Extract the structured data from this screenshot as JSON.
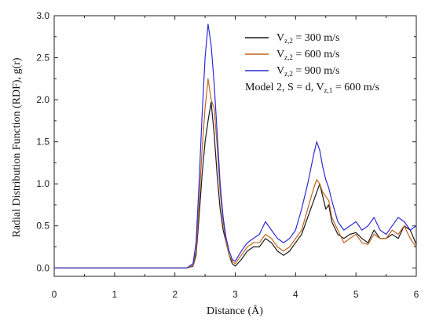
{
  "chart_data": {
    "type": "line",
    "xlabel": "Distance (Å)",
    "ylabel": "Radial Distribution Function (RDF), g(r)",
    "xlim": [
      0,
      6
    ],
    "ylim": [
      -0.1,
      3.0
    ],
    "xticks": [
      "0",
      "1",
      "2",
      "3",
      "4",
      "5",
      "6"
    ],
    "yticks": [
      "0.0",
      "0.5",
      "1.0",
      "1.5",
      "2.0",
      "2.5",
      "3.0"
    ],
    "grid": false,
    "legend_position": "top-right",
    "legend_note": {
      "prefix": "Model 2, S = d, V",
      "sub": "z,1",
      "suffix": " = 600 m/s"
    },
    "x": [
      0,
      0.5,
      1.0,
      1.5,
      2.0,
      2.2,
      2.3,
      2.35,
      2.4,
      2.45,
      2.5,
      2.55,
      2.6,
      2.65,
      2.7,
      2.75,
      2.8,
      2.85,
      2.9,
      2.95,
      3.0,
      3.1,
      3.2,
      3.3,
      3.4,
      3.5,
      3.6,
      3.7,
      3.8,
      3.9,
      4.0,
      4.1,
      4.2,
      4.3,
      4.35,
      4.4,
      4.45,
      4.5,
      4.55,
      4.6,
      4.7,
      4.8,
      4.9,
      5.0,
      5.1,
      5.2,
      5.3,
      5.4,
      5.5,
      5.6,
      5.7,
      5.8,
      5.9,
      6.0
    ],
    "series": [
      {
        "name_prefix": "V",
        "name_sub": "z,2",
        "name_suffix": " = 300 m/s",
        "color": "#1a1a1a",
        "values": [
          0,
          0,
          0,
          0,
          0,
          0.0,
          0.02,
          0.15,
          0.6,
          1.1,
          1.5,
          1.75,
          1.97,
          1.6,
          1.1,
          0.7,
          0.45,
          0.3,
          0.15,
          0.05,
          0.02,
          0.1,
          0.2,
          0.25,
          0.25,
          0.35,
          0.3,
          0.2,
          0.15,
          0.2,
          0.3,
          0.4,
          0.6,
          0.8,
          0.9,
          1.0,
          0.85,
          0.7,
          0.75,
          0.55,
          0.4,
          0.35,
          0.4,
          0.42,
          0.35,
          0.3,
          0.45,
          0.35,
          0.35,
          0.4,
          0.35,
          0.5,
          0.45,
          0.28
        ]
      },
      {
        "name_prefix": "V",
        "name_sub": "z,2",
        "name_suffix": " = 600 m/s",
        "color": "#c0621e",
        "values": [
          0,
          0,
          0,
          0,
          0,
          0.0,
          0.03,
          0.2,
          0.75,
          1.4,
          1.9,
          2.25,
          2.0,
          1.9,
          1.45,
          0.9,
          0.55,
          0.3,
          0.15,
          0.08,
          0.05,
          0.15,
          0.25,
          0.3,
          0.3,
          0.4,
          0.35,
          0.25,
          0.2,
          0.25,
          0.35,
          0.45,
          0.7,
          0.95,
          1.05,
          1.0,
          0.9,
          0.85,
          0.8,
          0.6,
          0.45,
          0.3,
          0.35,
          0.4,
          0.3,
          0.28,
          0.4,
          0.35,
          0.35,
          0.45,
          0.4,
          0.5,
          0.35,
          0.25
        ]
      },
      {
        "name_prefix": "V",
        "name_sub": "z,2",
        "name_suffix": " = 900 m/s",
        "color": "#2c2cd6",
        "values": [
          0,
          0,
          0,
          0,
          0,
          0.0,
          0.05,
          0.3,
          1.0,
          1.8,
          2.5,
          2.9,
          2.65,
          2.2,
          1.6,
          1.0,
          0.6,
          0.35,
          0.2,
          0.1,
          0.08,
          0.2,
          0.3,
          0.35,
          0.4,
          0.55,
          0.45,
          0.35,
          0.3,
          0.35,
          0.45,
          0.7,
          1.0,
          1.35,
          1.5,
          1.4,
          1.2,
          1.05,
          0.95,
          0.8,
          0.55,
          0.45,
          0.5,
          0.55,
          0.45,
          0.5,
          0.6,
          0.45,
          0.4,
          0.5,
          0.6,
          0.55,
          0.45,
          0.5
        ]
      }
    ]
  }
}
